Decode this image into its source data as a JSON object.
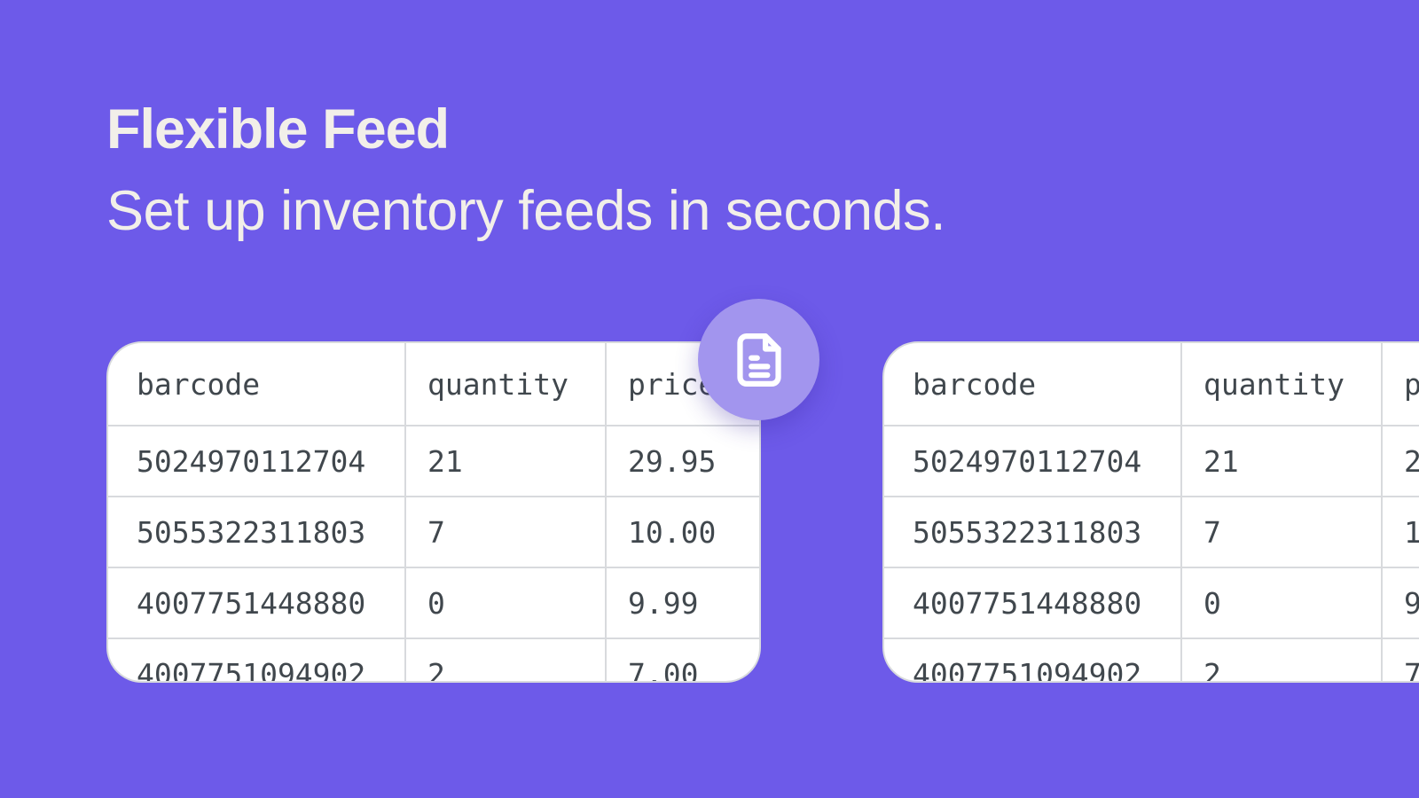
{
  "hero": {
    "title": "Flexible Feed",
    "subtitle": "Set up inventory feeds in seconds."
  },
  "table": {
    "columns": [
      "barcode",
      "quantity",
      "price"
    ],
    "rows": [
      [
        "5024970112704",
        "21",
        "29.95"
      ],
      [
        "5055322311803",
        "7",
        "10.00"
      ],
      [
        "4007751448880",
        "0",
        "9.99"
      ],
      [
        "4007751094902",
        "2",
        "7.00"
      ]
    ]
  },
  "badge": {
    "icon": "file-document-icon"
  },
  "colors": {
    "bg": "#6D5AE9",
    "badge": "#A295EE",
    "card": "#FFFFFF",
    "table-text": "#40474D",
    "divider": "#D8DADD",
    "heading": "#F2EFE9"
  }
}
